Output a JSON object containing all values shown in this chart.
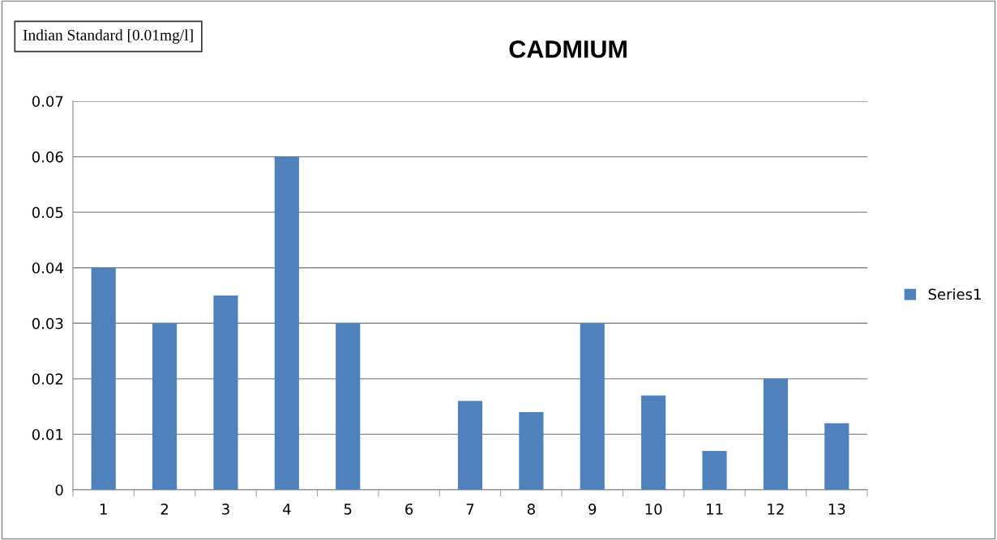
{
  "chart_data": {
    "type": "bar",
    "title": "CADMIUM",
    "categories": [
      "1",
      "2",
      "3",
      "4",
      "5",
      "6",
      "7",
      "8",
      "9",
      "10",
      "11",
      "12",
      "13"
    ],
    "series": [
      {
        "name": "Series1",
        "color": "#4f81bd",
        "values": [
          0.04,
          0.03,
          0.035,
          0.06,
          0.03,
          0,
          0.016,
          0.014,
          0.03,
          0.017,
          0.007,
          0.02,
          0.012
        ]
      }
    ],
    "ylim": [
      0,
      0.07
    ],
    "yticks": [
      {
        "value": 0,
        "label": "0"
      },
      0.01,
      0.02,
      0.03,
      0.04,
      0.05,
      0.06,
      0.07
    ],
    "grid": "y",
    "legend": "right",
    "annotations": [
      "Indian Standard [0.01mg/l]"
    ]
  }
}
